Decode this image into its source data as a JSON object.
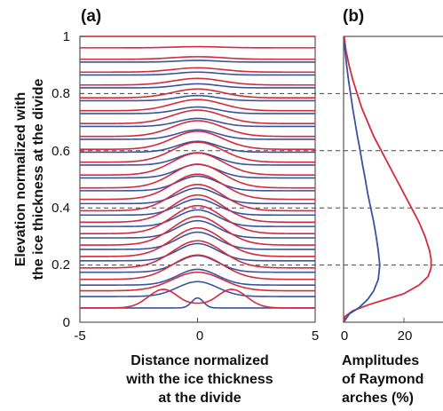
{
  "colors": {
    "red": "#d42a3c",
    "blue": "#3a52a0",
    "axis": "#555555",
    "grid": "#444444"
  },
  "chart_data": [
    {
      "type": "line",
      "panel_label": "(a)",
      "xlabel_lines": [
        "Distance normalized",
        "with the ice thickness",
        "at the divide"
      ],
      "ylabel_lines": [
        "Elevation normalized with",
        "the ice thickness at the divide"
      ],
      "xlim": [
        -5,
        5
      ],
      "ylim": [
        0,
        1
      ],
      "xticks": [
        "-5",
        "0",
        "5"
      ],
      "yticks": [
        "0",
        "0.2",
        "0.4",
        "0.6",
        "0.8",
        "1"
      ],
      "reference_lines_y": [
        0.2,
        0.4,
        0.6,
        0.8
      ],
      "layers": {
        "description_units": "baseline elevation and arch amplitude (normalized)",
        "red": [
          {
            "base": 0.05,
            "amp": 0.0,
            "shape": "double",
            "peak_x": 1.45,
            "peak_h": 0.065,
            "center_h": 0.007
          },
          {
            "base": 0.11,
            "amp": 0.065
          },
          {
            "base": 0.15,
            "amp": 0.085
          },
          {
            "base": 0.19,
            "amp": 0.095
          },
          {
            "base": 0.23,
            "amp": 0.1
          },
          {
            "base": 0.27,
            "amp": 0.1
          },
          {
            "base": 0.31,
            "amp": 0.098
          },
          {
            "base": 0.35,
            "amp": 0.095
          },
          {
            "base": 0.39,
            "amp": 0.092
          },
          {
            "base": 0.43,
            "amp": 0.088
          },
          {
            "base": 0.47,
            "amp": 0.083
          },
          {
            "base": 0.515,
            "amp": 0.077
          },
          {
            "base": 0.56,
            "amp": 0.07
          },
          {
            "base": 0.605,
            "amp": 0.063
          },
          {
            "base": 0.65,
            "amp": 0.055
          },
          {
            "base": 0.695,
            "amp": 0.047
          },
          {
            "base": 0.74,
            "amp": 0.039
          },
          {
            "base": 0.785,
            "amp": 0.031
          },
          {
            "base": 0.83,
            "amp": 0.023
          },
          {
            "base": 0.875,
            "amp": 0.015
          },
          {
            "base": 0.92,
            "amp": 0.009
          },
          {
            "base": 0.96,
            "amp": 0.004
          },
          {
            "base": 1.0,
            "amp": 0.0
          }
        ],
        "blue": [
          {
            "base": 0.05,
            "amp": 0.035
          },
          {
            "base": 0.09,
            "amp": 0.052
          },
          {
            "base": 0.13,
            "amp": 0.055
          },
          {
            "base": 0.175,
            "amp": 0.058
          },
          {
            "base": 0.215,
            "amp": 0.06
          },
          {
            "base": 0.255,
            "amp": 0.06
          },
          {
            "base": 0.295,
            "amp": 0.06
          },
          {
            "base": 0.335,
            "amp": 0.058
          },
          {
            "base": 0.375,
            "amp": 0.056
          },
          {
            "base": 0.415,
            "amp": 0.054
          },
          {
            "base": 0.46,
            "amp": 0.051
          },
          {
            "base": 0.505,
            "amp": 0.047
          },
          {
            "base": 0.55,
            "amp": 0.043
          },
          {
            "base": 0.595,
            "amp": 0.038
          },
          {
            "base": 0.64,
            "amp": 0.033
          },
          {
            "base": 0.685,
            "amp": 0.028
          },
          {
            "base": 0.73,
            "amp": 0.023
          },
          {
            "base": 0.775,
            "amp": 0.018
          },
          {
            "base": 0.82,
            "amp": 0.014
          },
          {
            "base": 0.865,
            "amp": 0.01
          },
          {
            "base": 0.91,
            "amp": 0.006
          }
        ]
      }
    },
    {
      "type": "line",
      "panel_label": "(b)",
      "xlabel_lines": [
        "Amplitudes",
        "of Raymond",
        "arches (%)"
      ],
      "xlim": [
        0,
        35
      ],
      "ylim": [
        0,
        1
      ],
      "xticks": [
        "0",
        "20"
      ],
      "xtick_values": [
        0,
        20
      ],
      "series": [
        {
          "color": "red",
          "points": [
            [
              0,
              0.0
            ],
            [
              0.5,
              0.02
            ],
            [
              3,
              0.04
            ],
            [
              8,
              0.06
            ],
            [
              14,
              0.08
            ],
            [
              20,
              0.1
            ],
            [
              25,
              0.13
            ],
            [
              28,
              0.16
            ],
            [
              29,
              0.19
            ],
            [
              29,
              0.22
            ],
            [
              28.5,
              0.25
            ],
            [
              27,
              0.3
            ],
            [
              25,
              0.35
            ],
            [
              22.5,
              0.4
            ],
            [
              20,
              0.45
            ],
            [
              17.5,
              0.5
            ],
            [
              15,
              0.55
            ],
            [
              12.5,
              0.6
            ],
            [
              10,
              0.65
            ],
            [
              8,
              0.7
            ],
            [
              6,
              0.75
            ],
            [
              4.5,
              0.8
            ],
            [
              3,
              0.85
            ],
            [
              1.8,
              0.9
            ],
            [
              0.8,
              0.95
            ],
            [
              0.2,
              1.0
            ]
          ]
        },
        {
          "color": "blue",
          "points": [
            [
              0,
              0.0
            ],
            [
              2,
              0.03
            ],
            [
              5,
              0.05
            ],
            [
              8,
              0.08
            ],
            [
              10,
              0.11
            ],
            [
              11.5,
              0.15
            ],
            [
              12,
              0.2
            ],
            [
              11.5,
              0.25
            ],
            [
              10.8,
              0.3
            ],
            [
              10,
              0.35
            ],
            [
              9,
              0.4
            ],
            [
              8,
              0.45
            ],
            [
              7.2,
              0.5
            ],
            [
              6.3,
              0.55
            ],
            [
              5.5,
              0.6
            ],
            [
              4.6,
              0.65
            ],
            [
              3.8,
              0.7
            ],
            [
              3,
              0.75
            ],
            [
              2.3,
              0.8
            ],
            [
              1.6,
              0.85
            ],
            [
              1,
              0.9
            ],
            [
              0.5,
              0.95
            ],
            [
              0.2,
              0.98
            ]
          ]
        }
      ]
    }
  ]
}
